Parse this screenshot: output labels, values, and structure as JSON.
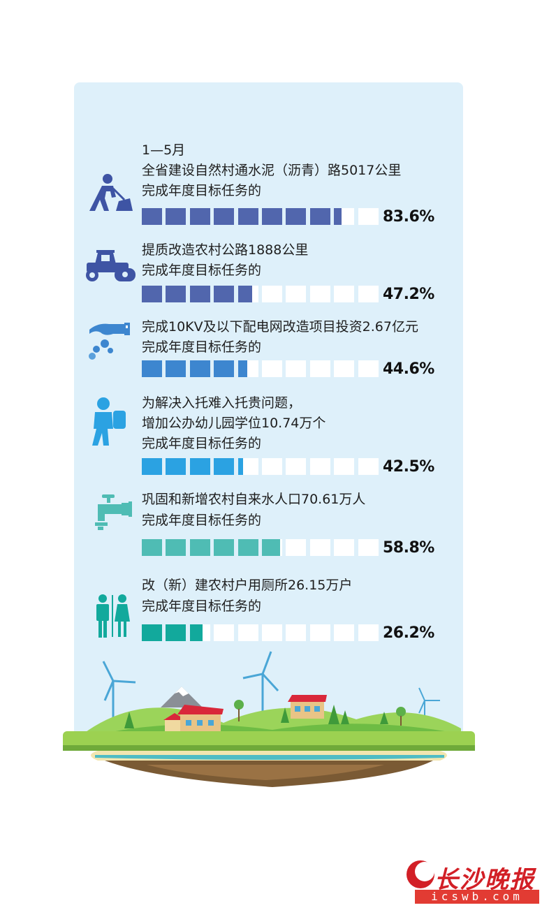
{
  "chart_data": {
    "type": "bar",
    "period": "1—5月",
    "segments_per_bar": 10,
    "items": [
      {
        "lines": [
          "全省建设自然村通水泥（沥青）路5017公里",
          "完成年度目标任务的"
        ],
        "value": 83.6,
        "label": "83.6%",
        "color": "#5166ad",
        "icon": "road-worker-icon"
      },
      {
        "lines": [
          "提质改造农村公路1888公里",
          "完成年度目标任务的"
        ],
        "value": 47.2,
        "label": "47.2%",
        "color": "#5166ad",
        "icon": "road-roller-icon"
      },
      {
        "lines": [
          "完成10KV及以下配电网改造项目投资2.67亿元",
          "完成年度目标任务的"
        ],
        "value": 44.6,
        "label": "44.6%",
        "color": "#3d86cf",
        "icon": "investment-hand-icon"
      },
      {
        "lines": [
          "为解决入托难入托贵问题，",
          "增加公办幼儿园学位10.74万个",
          "完成年度目标任务的"
        ],
        "value": 42.5,
        "label": "42.5%",
        "color": "#2ba2e2",
        "icon": "child-backpack-icon"
      },
      {
        "lines": [
          "巩固和新增农村自来水人口70.61万人",
          "完成年度目标任务的"
        ],
        "value": 58.8,
        "label": "58.8%",
        "color": "#4fbcb4",
        "icon": "water-tap-icon"
      },
      {
        "lines": [
          "改（新）建农村户用厕所26.15万户",
          "完成年度目标任务的"
        ],
        "value": 26.2,
        "label": "26.2%",
        "color": "#12a99c",
        "icon": "restroom-icon"
      }
    ]
  },
  "logo": {
    "name": "长沙晚报",
    "url": "icswb.com",
    "color": "#d21f26"
  }
}
